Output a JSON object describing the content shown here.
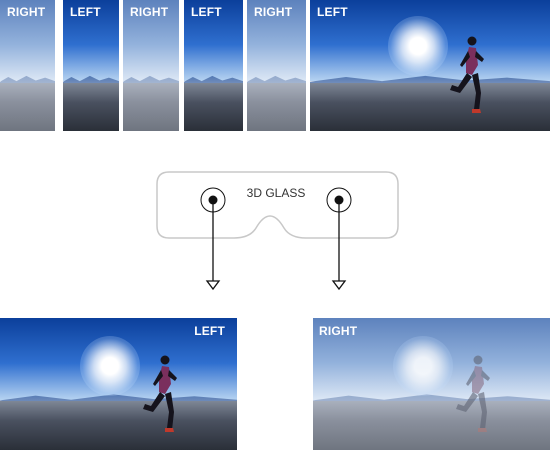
{
  "strip": [
    {
      "label": "RIGHT",
      "eye": "right"
    },
    {
      "label": "LEFT",
      "eye": "left"
    },
    {
      "label": "RIGHT",
      "eye": "right"
    },
    {
      "label": "LEFT",
      "eye": "left"
    },
    {
      "label": "RIGHT",
      "eye": "right"
    },
    {
      "label": "LEFT",
      "eye": "left"
    }
  ],
  "glasses": {
    "label": "3D GLASS"
  },
  "outputs": {
    "left": {
      "label": "LEFT"
    },
    "right": {
      "label": "RIGHT"
    }
  },
  "colors": {
    "left_eye_tint": "#0b3f9b",
    "right_eye_tint": "#5d82bd",
    "glass_outline": "#c8c8c8",
    "arrow": "#111111"
  }
}
